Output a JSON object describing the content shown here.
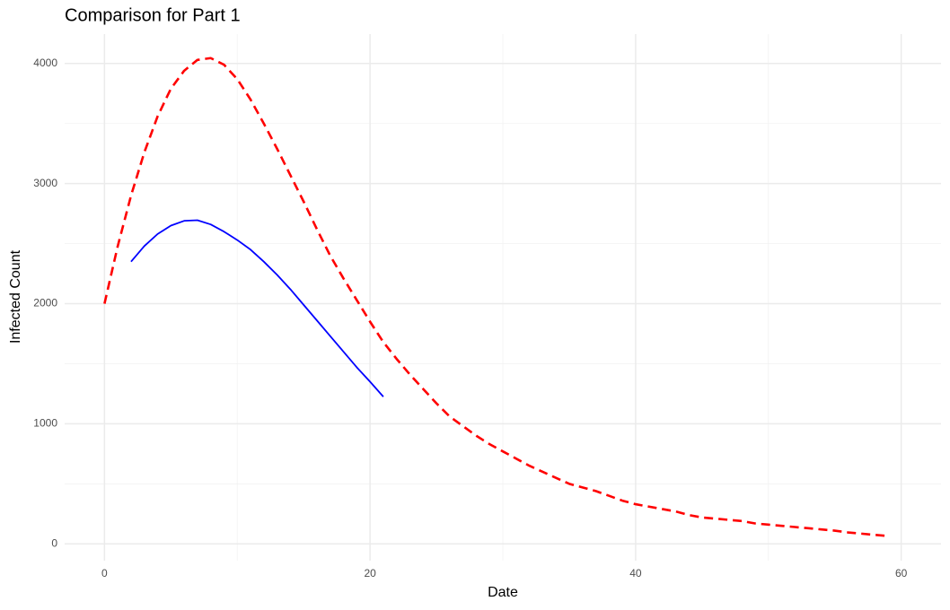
{
  "chart_data": {
    "type": "line",
    "title": "Comparison for Part 1",
    "x_label": "Date",
    "y_label": "Infected Count",
    "xlim": [
      -3,
      63
    ],
    "xticks": [
      0,
      20,
      40,
      60
    ],
    "ylim": [
      -140,
      4245
    ],
    "yticks": [
      0,
      1000,
      2000,
      3000,
      4000
    ],
    "grid": true,
    "series": [
      {
        "color": "#ff0000",
        "dash": true,
        "x": [
          0,
          1,
          2,
          3,
          4,
          5,
          6,
          7,
          8,
          9,
          10,
          11,
          12,
          13,
          14,
          15,
          16,
          17,
          18,
          19,
          20,
          21,
          22,
          23,
          24,
          25,
          26,
          27,
          28,
          29,
          30,
          31,
          32,
          33,
          34,
          35,
          36,
          37,
          38,
          39,
          40,
          41,
          42,
          43,
          44,
          45,
          46,
          47,
          48,
          49,
          50,
          51,
          52,
          53,
          54,
          55,
          56,
          57,
          58,
          59
        ],
        "values": [
          2000,
          2480,
          2900,
          3260,
          3560,
          3790,
          3940,
          4030,
          4045,
          3990,
          3870,
          3700,
          3500,
          3290,
          3070,
          2850,
          2620,
          2400,
          2210,
          2030,
          1850,
          1680,
          1540,
          1410,
          1290,
          1170,
          1060,
          980,
          900,
          830,
          770,
          710,
          650,
          600,
          550,
          500,
          470,
          440,
          400,
          360,
          330,
          310,
          290,
          270,
          240,
          220,
          210,
          200,
          190,
          170,
          160,
          150,
          140,
          130,
          120,
          110,
          95,
          85,
          75,
          65
        ]
      },
      {
        "color": "#0000ff",
        "dash": false,
        "x": [
          2,
          3,
          4,
          5,
          6,
          7,
          8,
          9,
          10,
          11,
          12,
          13,
          14,
          15,
          16,
          17,
          18,
          19,
          20,
          21
        ],
        "values": [
          2350,
          2480,
          2580,
          2650,
          2690,
          2695,
          2660,
          2600,
          2530,
          2450,
          2350,
          2240,
          2120,
          1990,
          1860,
          1730,
          1600,
          1470,
          1350,
          1225
        ]
      }
    ]
  }
}
